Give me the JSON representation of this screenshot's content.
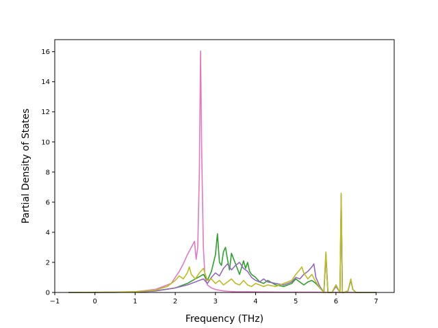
{
  "chart_data": {
    "type": "line",
    "title": "",
    "xlabel": "Frequency (THz)",
    "ylabel": "Partial Density of States",
    "xlim": [
      -1.0,
      7.45
    ],
    "ylim": [
      0,
      16.8
    ],
    "xticks": [
      -1,
      0,
      1,
      2,
      3,
      4,
      5,
      6,
      7
    ],
    "yticks": [
      0,
      2,
      4,
      6,
      8,
      10,
      12,
      14,
      16
    ],
    "grid": false,
    "legend": "none",
    "series": [
      {
        "color": "#e377c2",
        "x": [
          -0.65,
          0.5,
          1.0,
          1.5,
          1.7,
          1.9,
          2.0,
          2.1,
          2.2,
          2.3,
          2.4,
          2.48,
          2.52,
          2.56,
          2.6,
          2.63,
          2.66,
          2.7,
          2.74,
          2.8,
          2.9,
          3.0,
          3.1,
          3.2,
          3.3,
          3.5,
          3.8,
          4.2,
          4.6,
          5.0,
          5.5,
          5.7,
          5.9,
          6.1,
          6.3,
          6.5,
          7.0
        ],
        "y": [
          0,
          0.02,
          0.05,
          0.2,
          0.4,
          0.6,
          1.0,
          1.4,
          1.9,
          2.5,
          3.0,
          3.4,
          2.2,
          3.0,
          8.0,
          16.05,
          9.0,
          3.0,
          1.0,
          0.5,
          0.3,
          0.2,
          0.15,
          0.1,
          0.08,
          0.05,
          0.05,
          0.03,
          0.02,
          0.02,
          0.02,
          0.01,
          0.01,
          0.01,
          0.01,
          0.0,
          0.0
        ]
      },
      {
        "color": "#2ca02c",
        "x": [
          -0.65,
          0.5,
          1.0,
          1.5,
          2.0,
          2.3,
          2.5,
          2.7,
          2.8,
          2.9,
          3.0,
          3.05,
          3.1,
          3.15,
          3.2,
          3.25,
          3.3,
          3.35,
          3.4,
          3.5,
          3.6,
          3.7,
          3.75,
          3.8,
          3.85,
          3.9,
          4.0,
          4.1,
          4.2,
          4.3,
          4.5,
          4.7,
          4.9,
          5.0,
          5.1,
          5.2,
          5.3,
          5.4,
          5.5,
          5.6,
          5.7,
          5.75,
          5.8,
          5.9,
          6.0,
          6.1,
          6.13,
          6.16,
          6.2,
          6.3,
          6.37,
          6.42,
          6.5,
          7.0
        ],
        "y": [
          0,
          0.01,
          0.03,
          0.1,
          0.3,
          0.6,
          0.9,
          1.2,
          0.8,
          1.4,
          2.5,
          3.9,
          2.0,
          1.8,
          2.7,
          3.0,
          2.2,
          1.5,
          2.6,
          1.9,
          1.2,
          2.1,
          1.6,
          2.0,
          1.4,
          1.2,
          1.0,
          0.7,
          0.6,
          0.8,
          0.5,
          0.4,
          0.6,
          0.9,
          0.7,
          0.5,
          0.7,
          0.8,
          0.6,
          0.3,
          0.0,
          2.6,
          0.0,
          0.0,
          0.5,
          0.0,
          6.5,
          0.0,
          0.0,
          0.1,
          0.85,
          0.2,
          0.0,
          0.0
        ]
      },
      {
        "color": "#9467bd",
        "x": [
          -0.65,
          0.5,
          1.0,
          1.5,
          2.0,
          2.3,
          2.5,
          2.7,
          2.8,
          2.9,
          3.0,
          3.1,
          3.2,
          3.3,
          3.4,
          3.5,
          3.6,
          3.7,
          3.8,
          3.9,
          4.0,
          4.1,
          4.2,
          4.3,
          4.5,
          4.7,
          4.9,
          5.0,
          5.1,
          5.2,
          5.3,
          5.4,
          5.45,
          5.5,
          5.6,
          5.7,
          5.75,
          5.8,
          5.9,
          6.0,
          6.1,
          6.13,
          6.16,
          6.2,
          6.3,
          6.37,
          6.42,
          6.5,
          7.0
        ],
        "y": [
          0,
          0.01,
          0.03,
          0.1,
          0.3,
          0.5,
          0.7,
          0.9,
          0.6,
          1.0,
          1.3,
          1.1,
          1.6,
          1.9,
          1.5,
          1.8,
          2.0,
          1.6,
          1.4,
          1.0,
          0.8,
          0.7,
          0.9,
          0.7,
          0.6,
          0.5,
          0.7,
          1.0,
          0.9,
          1.2,
          1.4,
          1.7,
          1.9,
          1.0,
          0.4,
          0.0,
          2.4,
          0.0,
          0.0,
          0.4,
          0.0,
          6.3,
          0.0,
          0.0,
          0.1,
          0.8,
          0.2,
          0.0,
          0.0
        ]
      },
      {
        "color": "#bcbd22",
        "x": [
          -0.65,
          0.5,
          1.0,
          1.5,
          1.8,
          2.0,
          2.1,
          2.2,
          2.3,
          2.35,
          2.4,
          2.5,
          2.6,
          2.7,
          2.75,
          2.8,
          2.9,
          3.0,
          3.1,
          3.2,
          3.3,
          3.4,
          3.5,
          3.6,
          3.7,
          3.8,
          3.9,
          4.0,
          4.1,
          4.2,
          4.3,
          4.5,
          4.7,
          4.9,
          5.0,
          5.1,
          5.15,
          5.2,
          5.3,
          5.4,
          5.5,
          5.6,
          5.7,
          5.75,
          5.8,
          5.9,
          6.0,
          6.1,
          6.13,
          6.16,
          6.2,
          6.3,
          6.37,
          6.42,
          6.5,
          7.0
        ],
        "y": [
          0,
          0.02,
          0.05,
          0.15,
          0.4,
          0.8,
          1.1,
          0.9,
          1.3,
          1.7,
          1.2,
          0.9,
          1.3,
          1.6,
          1.2,
          0.8,
          0.9,
          0.6,
          0.8,
          0.5,
          0.7,
          0.9,
          0.6,
          0.5,
          0.8,
          0.5,
          0.4,
          0.6,
          0.5,
          0.4,
          0.5,
          0.4,
          0.6,
          0.8,
          1.2,
          1.5,
          1.7,
          1.3,
          0.9,
          1.2,
          0.7,
          0.3,
          0.0,
          2.7,
          0.0,
          0.0,
          0.5,
          0.0,
          6.6,
          0.0,
          0.0,
          0.1,
          0.9,
          0.2,
          0.0,
          0.0
        ]
      }
    ]
  }
}
